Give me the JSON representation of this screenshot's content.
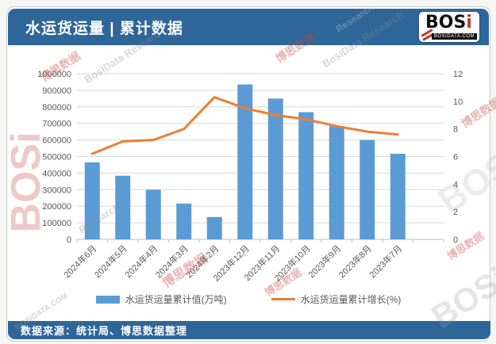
{
  "header": {
    "title": "水运货运量 | 累计数据",
    "logo": {
      "brand_main": "BOS",
      "brand_i": "i",
      "domain": "BOSIDATA.COM"
    }
  },
  "footer": {
    "source": "数据来源：统计局、博思数据整理"
  },
  "watermarks": {
    "brand": "BOSi",
    "cn": "博思数据",
    "research": "BosiData Research",
    "research_tail": "Research",
    "domain": "BOSIDATA.COM"
  },
  "colors": {
    "header_bg": "#2F6699",
    "bar": "#5B9BD5",
    "line": "#ED7D31",
    "grid": "#D9D9D9",
    "axis_line": "#BFBFBF",
    "tick_text": "#595959"
  },
  "chart_data": {
    "type": "bar",
    "subtype": "bar+line combo, dual axis",
    "categories": [
      "2024年6月",
      "2024年5月",
      "2024年4月",
      "2024年3月",
      "2024年2月",
      "2023年12月",
      "2023年11月",
      "2023年10月",
      "2023年9月",
      "2023年8月",
      "2023年7月"
    ],
    "series": [
      {
        "name": "水运货运量累计值(万吨)",
        "type": "bar",
        "axis": "left",
        "color": "#5B9BD5",
        "values": [
          465000,
          384000,
          300000,
          216000,
          135000,
          935000,
          850000,
          768000,
          683000,
          600000,
          517000
        ]
      },
      {
        "name": "水运货运量累计增长(%)",
        "type": "line",
        "axis": "right",
        "color": "#ED7D31",
        "values": [
          6.2,
          7.1,
          7.2,
          8.0,
          10.3,
          9.5,
          9.0,
          8.7,
          8.2,
          7.8,
          7.6
        ]
      }
    ],
    "left_axis": {
      "min": 0,
      "max": 1000000,
      "step": 100000,
      "ticks": [
        "0",
        "100000",
        "200000",
        "300000",
        "400000",
        "500000",
        "600000",
        "700000",
        "800000",
        "900000",
        "1000000"
      ]
    },
    "right_axis": {
      "min": 0,
      "max": 12,
      "step": 2,
      "ticks": [
        "0",
        "2",
        "4",
        "6",
        "8",
        "10",
        "12"
      ]
    },
    "grid": true,
    "legend_position": "bottom",
    "title": "水运货运量 | 累计数据"
  }
}
